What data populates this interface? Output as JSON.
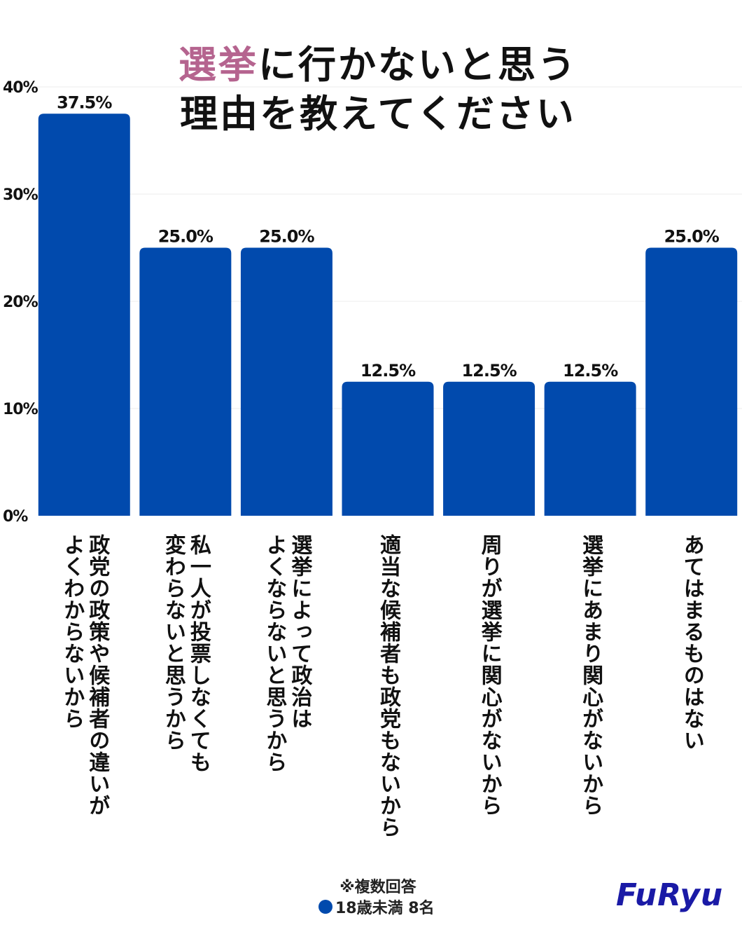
{
  "title": {
    "accent": "選挙",
    "rest": "に行かないと思う",
    "line2": "理由を教えてください"
  },
  "chart_data": {
    "type": "bar",
    "categories": [
      [
        "政党の政策や候補者の違いが",
        "よくわからないから"
      ],
      [
        "私一人が投票しなくても",
        "変わらないと思うから"
      ],
      [
        "選挙によって政治は",
        "よくならないと思うから"
      ],
      [
        "適当な候補者も政党もないから"
      ],
      [
        "周りが選挙に関心がないから"
      ],
      [
        "選挙にあまり関心がないから"
      ],
      [
        "あてはまるものはない"
      ]
    ],
    "series": [
      {
        "name": "18歳未満 8名",
        "values": [
          37.5,
          25.0,
          25.0,
          12.5,
          12.5,
          12.5,
          25.0
        ],
        "color": "#014aad"
      }
    ],
    "data_labels": [
      "37.5%",
      "25.0%",
      "25.0%",
      "12.5%",
      "12.5%",
      "12.5%",
      "25.0%"
    ],
    "y_ticks": [
      0,
      10,
      20,
      30,
      40
    ],
    "y_tick_labels": [
      "0%",
      "10%",
      "20%",
      "30%",
      "40%"
    ],
    "ylim": [
      0,
      40
    ],
    "grid": true
  },
  "footnote": "※複数回答",
  "legend": {
    "label": "18歳未満 8名",
    "color": "#014aad"
  },
  "logo": {
    "text": "FuRyu",
    "color": "#1a1aa6"
  },
  "colors": {
    "accent": "#b5648f",
    "bar": "#014aad",
    "text": "#111111"
  }
}
